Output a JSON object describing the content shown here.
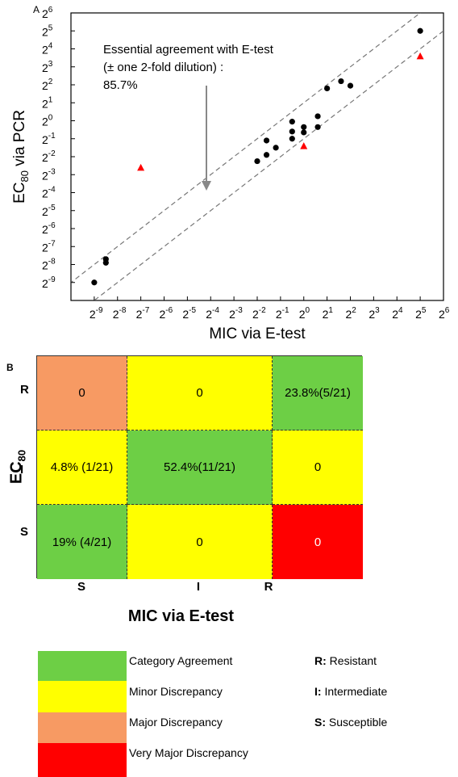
{
  "panel_a": {
    "label": "A",
    "annotation_lines": [
      "Essential agreement with E-test",
      "(± one 2-fold dilution) :",
      "85.7%"
    ]
  },
  "panel_b": {
    "label": "B",
    "ylabel": "EC",
    "ylabel_sub": "80",
    "xlabel": "MIC via E-test",
    "row_labels": [
      "R",
      "I",
      "S"
    ],
    "col_labels": [
      "S",
      "I",
      "R"
    ],
    "cells": [
      [
        "0",
        "0",
        "23.8%(5/21)"
      ],
      [
        "4.8% (1/21)",
        "52.4%(11/21)",
        "0"
      ],
      [
        "19% (4/21)",
        "0",
        "0"
      ]
    ],
    "cell_colors": [
      [
        "#f79a63",
        "#ffff00",
        "#6dcf45"
      ],
      [
        "#ffff00",
        "#6dcf45",
        "#ffff00"
      ],
      [
        "#6dcf45",
        "#ffff00",
        "#ff0000"
      ]
    ],
    "cell_text_colors": [
      [
        "#000000",
        "#000000",
        "#000000"
      ],
      [
        "#000000",
        "#000000",
        "#000000"
      ],
      [
        "#000000",
        "#000000",
        "#ffffff"
      ]
    ]
  },
  "legend": [
    {
      "color": "#6dcf45",
      "label": "Category Agreement"
    },
    {
      "color": "#ffff00",
      "label": "Minor Discrepancy"
    },
    {
      "color": "#f79a63",
      "label": "Major Discrepancy"
    },
    {
      "color": "#ff0000",
      "label": "Very Major Discrepancy"
    }
  ],
  "abbreviations": [
    {
      "key": "R:",
      "text": "Resistant"
    },
    {
      "key": "I:",
      "text": "Intermediate"
    },
    {
      "key": "S:",
      "text": "Susceptible"
    }
  ],
  "chart_data": [
    {
      "type": "scatter",
      "xlabel": "MIC via E-test",
      "ylabel": "EC",
      "ylabel_sub": "80",
      "x_scale": "log2",
      "y_scale": "log2",
      "xlim_exp": [
        -10,
        6
      ],
      "ylim_exp": [
        -10,
        6
      ],
      "x_tick_exponents": [
        -9,
        -8,
        -7,
        -6,
        -5,
        -4,
        -3,
        -2,
        -1,
        0,
        1,
        2,
        3,
        4,
        5,
        6
      ],
      "y_tick_exponents": [
        -9,
        -8,
        -7,
        -6,
        -5,
        -4,
        -3,
        -2,
        -1,
        0,
        1,
        2,
        3,
        4,
        5,
        6
      ],
      "agreement_band_offset_exp": 1,
      "series": [
        {
          "marker": "circle",
          "color": "#000000",
          "points_exp": [
            [
              -9,
              -9
            ],
            [
              -8.5,
              -7.7
            ],
            [
              -8.5,
              -7.9
            ],
            [
              -2,
              -2.25
            ],
            [
              -1.6,
              -1.1
            ],
            [
              -1.6,
              -1.9
            ],
            [
              -1.2,
              -1.5
            ],
            [
              -0.5,
              -0.05
            ],
            [
              -0.5,
              -0.6
            ],
            [
              -0.5,
              -1.0
            ],
            [
              0,
              -0.35
            ],
            [
              0,
              -0.65
            ],
            [
              0.6,
              0.25
            ],
            [
              0.6,
              -0.35
            ],
            [
              1,
              1.8
            ],
            [
              1.6,
              2.2
            ],
            [
              2,
              1.95
            ],
            [
              5,
              5
            ]
          ]
        },
        {
          "marker": "triangle",
          "color": "#ff0000",
          "points_exp": [
            [
              -7,
              -2.6
            ],
            [
              0,
              -1.4
            ],
            [
              5,
              3.6
            ]
          ]
        }
      ]
    },
    {
      "type": "heatmap",
      "rows": [
        "R",
        "I",
        "S"
      ],
      "columns": [
        "S",
        "I",
        "R"
      ],
      "values": [
        [
          "0",
          "0",
          "23.8%(5/21)"
        ],
        [
          "4.8% (1/21)",
          "52.4%(11/21)",
          "0"
        ],
        [
          "19% (4/21)",
          "0",
          "0"
        ]
      ]
    }
  ]
}
